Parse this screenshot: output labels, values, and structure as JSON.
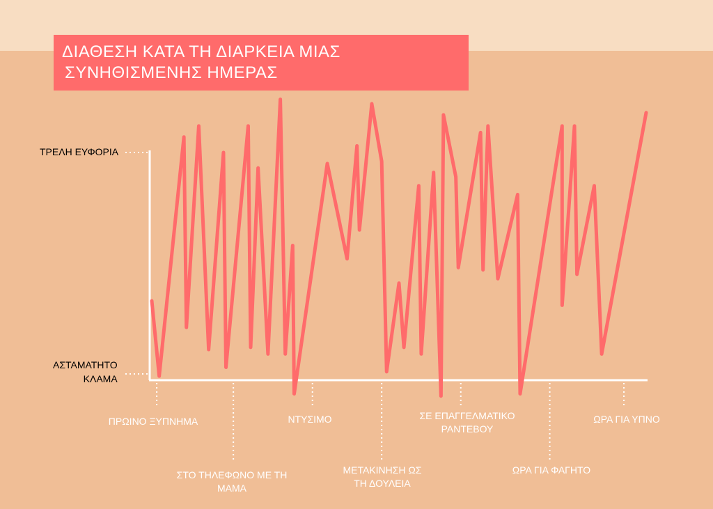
{
  "title": {
    "line1": "ΔΙΑΘΕΣΗ ΚΑΤΑ ΤΗ ΔΙΑΡΚΕΙΑ ΜΙΑΣ",
    "line2": "ΣΥΝΗΘΙΣΜΕΝΗΣ ΗΜΕΡΑΣ"
  },
  "colors": {
    "background": "#f0be96",
    "top_band": "#f8ddc2",
    "accent": "#ff6b6b",
    "axis": "#ffffff"
  },
  "chart_data": {
    "type": "line",
    "title": "ΔΙΑΘΕΣΗ ΚΑΤΑ ΤΗ ΔΙΑΡΚΕΙΑ ΜΙΑΣ ΣΥΝΗΘΙΣΜΕΝΗΣ ΗΜΕΡΑΣ",
    "y_labels": {
      "high": "ΤΡΕΛΗ ΕΥΦΟΡΙΑ",
      "low_line1": "ΑΣΤΑΜΑΤΗΤΟ",
      "low_line2": "ΚΛΑΜΑ"
    },
    "ylim": [
      0,
      100
    ],
    "xlim": [
      0,
      100
    ],
    "y_ticks": [
      0,
      100
    ],
    "grid": false,
    "x_events": [
      {
        "x": 1,
        "label": "ΠΡΩΙΝΟ ΞΥΠΝΗΜΑ",
        "row": "upper"
      },
      {
        "x": 16.5,
        "label": "ΣΤΟ ΤΗΛΕΦΩΝΟ ΜΕ ΤΗ ΜΑΜΑ",
        "row": "lower"
      },
      {
        "x": 32.5,
        "label": "ΝΤΥΣΙΜΟ",
        "row": "upper"
      },
      {
        "x": 46.5,
        "label": "ΜΕΤΑΚΙΝΗΣΗ ΩΣ ΤΗ ΔΟΥΛΕΙΑ",
        "row": "lower"
      },
      {
        "x": 62.5,
        "label": "ΣΕ ΕΠΑΓΓΕΛΜΑΤΙΚΟ ΡΑΝΤΕΒΟΥ",
        "row": "upper"
      },
      {
        "x": 80.5,
        "label": "ΩΡΑ ΓΙΑ ΦΑΓΗΤΟ",
        "row": "lower"
      },
      {
        "x": 95.5,
        "label": "ΩΡΑ ΓΙΑ ΥΠΝΟ",
        "row": "upper"
      }
    ],
    "series": [
      {
        "values": [
          [
            0,
            33
          ],
          [
            1.5,
            -1
          ],
          [
            6.5,
            107
          ],
          [
            7,
            21
          ],
          [
            9.5,
            112
          ],
          [
            11.5,
            11
          ],
          [
            14.5,
            100
          ],
          [
            15,
            3
          ],
          [
            19.5,
            112
          ],
          [
            20,
            12
          ],
          [
            21.5,
            93
          ],
          [
            23.5,
            9
          ],
          [
            26,
            124
          ],
          [
            27,
            9
          ],
          [
            28.5,
            58
          ],
          [
            28.8,
            -9
          ],
          [
            35.5,
            95
          ],
          [
            39.5,
            52
          ],
          [
            41.5,
            103
          ],
          [
            42,
            65
          ],
          [
            44.5,
            122
          ],
          [
            46.5,
            96
          ],
          [
            47.5,
            1
          ],
          [
            50,
            41
          ],
          [
            51,
            12
          ],
          [
            54,
            85
          ],
          [
            54.5,
            9
          ],
          [
            57,
            91
          ],
          [
            58.5,
            -10
          ],
          [
            59,
            117
          ],
          [
            61.5,
            89
          ],
          [
            62,
            48
          ],
          [
            66.5,
            109
          ],
          [
            67,
            47
          ],
          [
            68,
            112
          ],
          [
            70,
            43
          ],
          [
            74,
            81
          ],
          [
            74.5,
            -9
          ],
          [
            83,
            112
          ],
          [
            83,
            31
          ],
          [
            85.5,
            112
          ],
          [
            86,
            45
          ],
          [
            89.5,
            85
          ],
          [
            91,
            9
          ],
          [
            100,
            118
          ]
        ]
      }
    ]
  }
}
